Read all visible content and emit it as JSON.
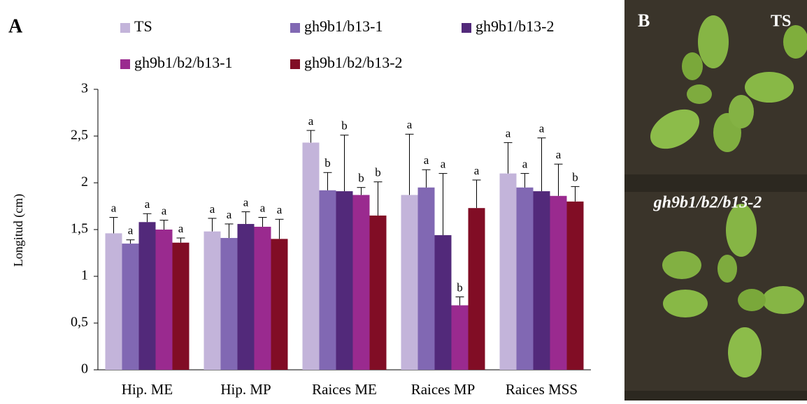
{
  "chart_data": {
    "type": "bar",
    "panel_label": "A",
    "ylabel": "Longitud  (cm)",
    "categories": [
      "Hip.  ME",
      "Hip.  MP",
      "Raices  ME",
      "Raices  MP",
      "Raices  MSS"
    ],
    "ylim": [
      0,
      3
    ],
    "yticks": [
      0,
      {
        "value": 0.5,
        "label": "0,5"
      },
      1,
      {
        "value": 1.5,
        "label": "1,5"
      },
      2,
      {
        "value": 2.5,
        "label": "2,5"
      },
      3
    ],
    "grid": false,
    "series": [
      {
        "name": "TS",
        "color": "#c3b4da",
        "values": [
          1.46,
          1.48,
          2.43,
          1.87,
          2.1
        ],
        "errors": [
          0.17,
          0.14,
          0.13,
          0.65,
          0.33
        ],
        "letters": [
          "a",
          "a",
          "a",
          "a",
          "a"
        ]
      },
      {
        "name": "gh9b1/b13-1",
        "color": "#8168b3",
        "values": [
          1.35,
          1.41,
          1.92,
          1.95,
          1.95
        ],
        "errors": [
          0.04,
          0.15,
          0.19,
          0.19,
          0.15
        ],
        "letters": [
          "a",
          "a",
          "b",
          "a",
          "a"
        ]
      },
      {
        "name": "gh9b1/b13-2",
        "color": "#52297a",
        "values": [
          1.58,
          1.56,
          1.91,
          1.44,
          1.91
        ],
        "errors": [
          0.09,
          0.13,
          0.6,
          0.66,
          0.57
        ],
        "letters": [
          "a",
          "a",
          "b",
          "a",
          "a"
        ]
      },
      {
        "name": "gh9b1/b2/b13-1",
        "color": "#9a2a8f",
        "values": [
          1.5,
          1.53,
          1.87,
          0.69,
          1.86
        ],
        "errors": [
          0.1,
          0.1,
          0.08,
          0.09,
          0.34
        ],
        "letters": [
          "a",
          "a",
          "b",
          "b",
          "a"
        ]
      },
      {
        "name": "gh9b1/b2/b13-2",
        "color": "#810d25",
        "values": [
          1.36,
          1.4,
          1.65,
          1.73,
          1.8
        ],
        "errors": [
          0.05,
          0.21,
          0.36,
          0.3,
          0.16
        ],
        "letters": [
          "a",
          "a",
          "b",
          "a",
          "b"
        ]
      }
    ]
  },
  "photo": {
    "panel_label": "B",
    "top_label": "TS",
    "bottom_label": "gh9b1/b2/b13-2"
  }
}
